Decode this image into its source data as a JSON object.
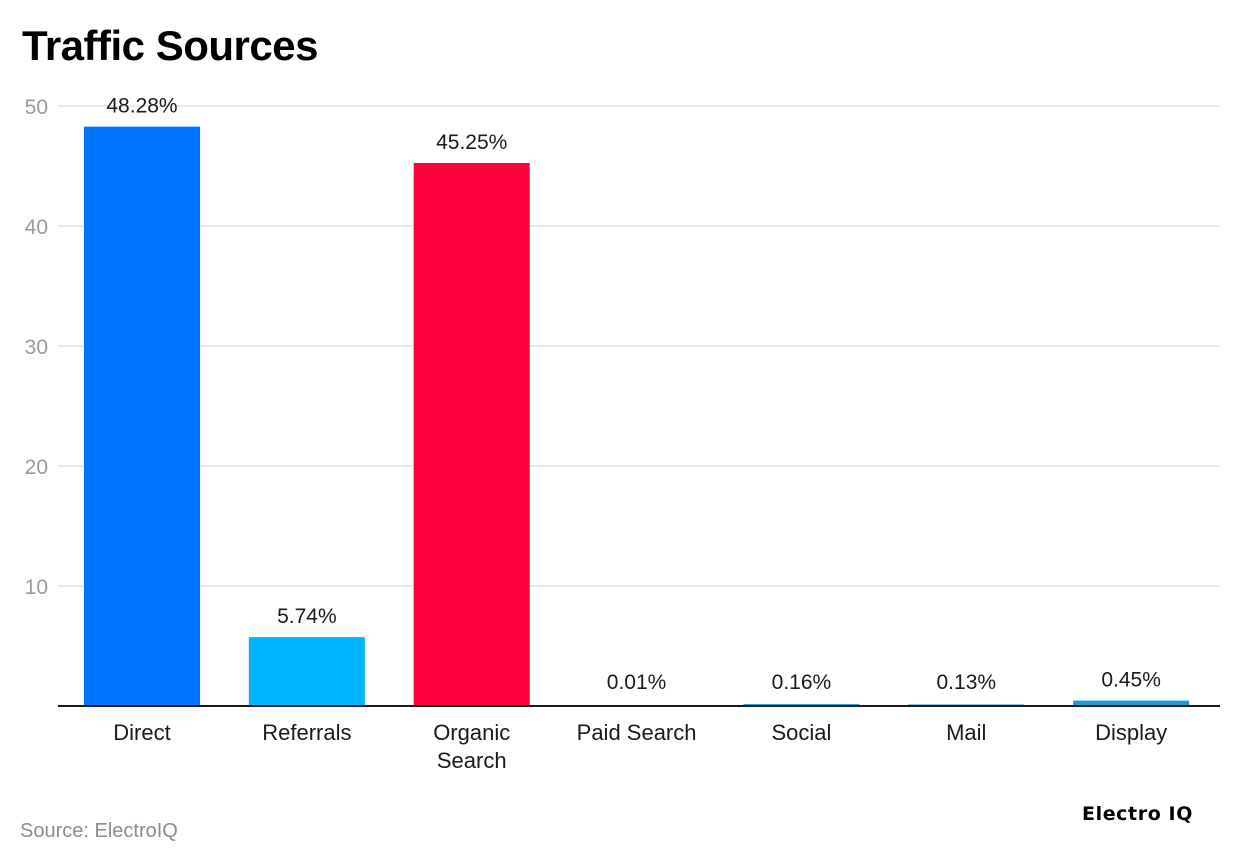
{
  "title": "Traffic Sources",
  "source": "Source: ElectroIQ",
  "brand": "Electro IQ",
  "chart_data": {
    "type": "bar",
    "title": "Traffic Sources",
    "xlabel": "",
    "ylabel": "",
    "ylim": [
      0,
      50
    ],
    "yticks": [
      10,
      20,
      30,
      40,
      50
    ],
    "grid": true,
    "legend": "none",
    "categories": [
      [
        "Direct"
      ],
      [
        "Referrals"
      ],
      [
        "Organic",
        "Search"
      ],
      [
        "Paid Search"
      ],
      [
        "Social"
      ],
      [
        "Mail"
      ],
      [
        "Display"
      ]
    ],
    "values": [
      48.28,
      5.74,
      45.25,
      0.01,
      0.16,
      0.13,
      0.45
    ],
    "labels": [
      "48.28%",
      "5.74%",
      "45.25%",
      "0.01%",
      "0.16%",
      "0.13%",
      "0.45%"
    ],
    "colors": [
      "#0075ff",
      "#00b4ff",
      "#ff003d",
      "#1a9bd7",
      "#1a9bd7",
      "#1a9bd7",
      "#1a9bd7"
    ]
  }
}
